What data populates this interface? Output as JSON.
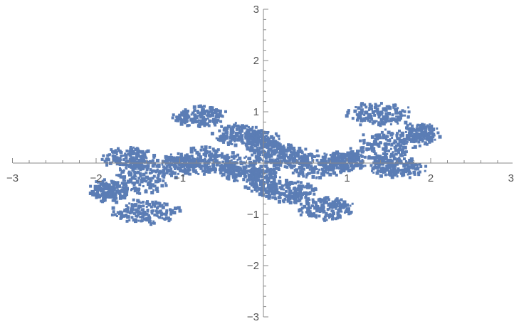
{
  "chart_data": {
    "type": "scatter",
    "title": "",
    "xlabel": "",
    "ylabel": "",
    "xlim": [
      -3,
      3
    ],
    "ylim": [
      -3,
      3
    ],
    "grid": false,
    "legend": "none",
    "axes_origin": [
      0,
      0
    ],
    "x_ticks": [
      -3,
      -2,
      -1,
      1,
      2,
      3
    ],
    "x_tick_labels": [
      "−3",
      "−2",
      "−1",
      "1",
      "2",
      "3"
    ],
    "y_ticks": [
      -3,
      -2,
      -1,
      1,
      2,
      3
    ],
    "y_tick_labels": [
      "−3",
      "−2",
      "−1",
      "1",
      "2",
      "3"
    ],
    "minor_ticks_per_unit": 5,
    "series": [
      {
        "marker_color": "#5b7db5",
        "clusters": [
          {
            "center": [
              0.25,
              0.12
            ],
            "spread": [
              0.28,
              0.22
            ]
          },
          {
            "center": [
              0.65,
              -0.05
            ],
            "spread": [
              0.32,
              0.24
            ]
          },
          {
            "center": [
              0.0,
              -0.35
            ],
            "spread": [
              0.2,
              0.25
            ]
          },
          {
            "center": [
              0.3,
              -0.55
            ],
            "spread": [
              0.3,
              0.2
            ]
          },
          {
            "center": [
              0.75,
              -0.9
            ],
            "spread": [
              0.3,
              0.2
            ]
          },
          {
            "center": [
              1.0,
              0.05
            ],
            "spread": [
              0.22,
              0.2
            ]
          },
          {
            "center": [
              1.45,
              0.3
            ],
            "spread": [
              0.3,
              0.3
            ]
          },
          {
            "center": [
              1.4,
              0.95
            ],
            "spread": [
              0.35,
              0.22
            ]
          },
          {
            "center": [
              1.85,
              0.55
            ],
            "spread": [
              0.22,
              0.2
            ]
          },
          {
            "center": [
              1.6,
              -0.1
            ],
            "spread": [
              0.3,
              0.18
            ]
          },
          {
            "center": [
              -0.25,
              -0.12
            ],
            "spread": [
              0.28,
              0.22
            ]
          },
          {
            "center": [
              -0.65,
              0.05
            ],
            "spread": [
              0.32,
              0.24
            ]
          },
          {
            "center": [
              0.0,
              0.35
            ],
            "spread": [
              0.2,
              0.25
            ]
          },
          {
            "center": [
              -0.3,
              0.55
            ],
            "spread": [
              0.3,
              0.2
            ]
          },
          {
            "center": [
              -0.75,
              0.9
            ],
            "spread": [
              0.3,
              0.2
            ]
          },
          {
            "center": [
              -1.0,
              -0.05
            ],
            "spread": [
              0.22,
              0.2
            ]
          },
          {
            "center": [
              -1.45,
              -0.3
            ],
            "spread": [
              0.3,
              0.3
            ]
          },
          {
            "center": [
              -1.4,
              -0.95
            ],
            "spread": [
              0.35,
              0.22
            ]
          },
          {
            "center": [
              -1.85,
              -0.55
            ],
            "spread": [
              0.22,
              0.2
            ]
          },
          {
            "center": [
              -1.6,
              0.1
            ],
            "spread": [
              0.3,
              0.18
            ]
          }
        ]
      }
    ]
  }
}
